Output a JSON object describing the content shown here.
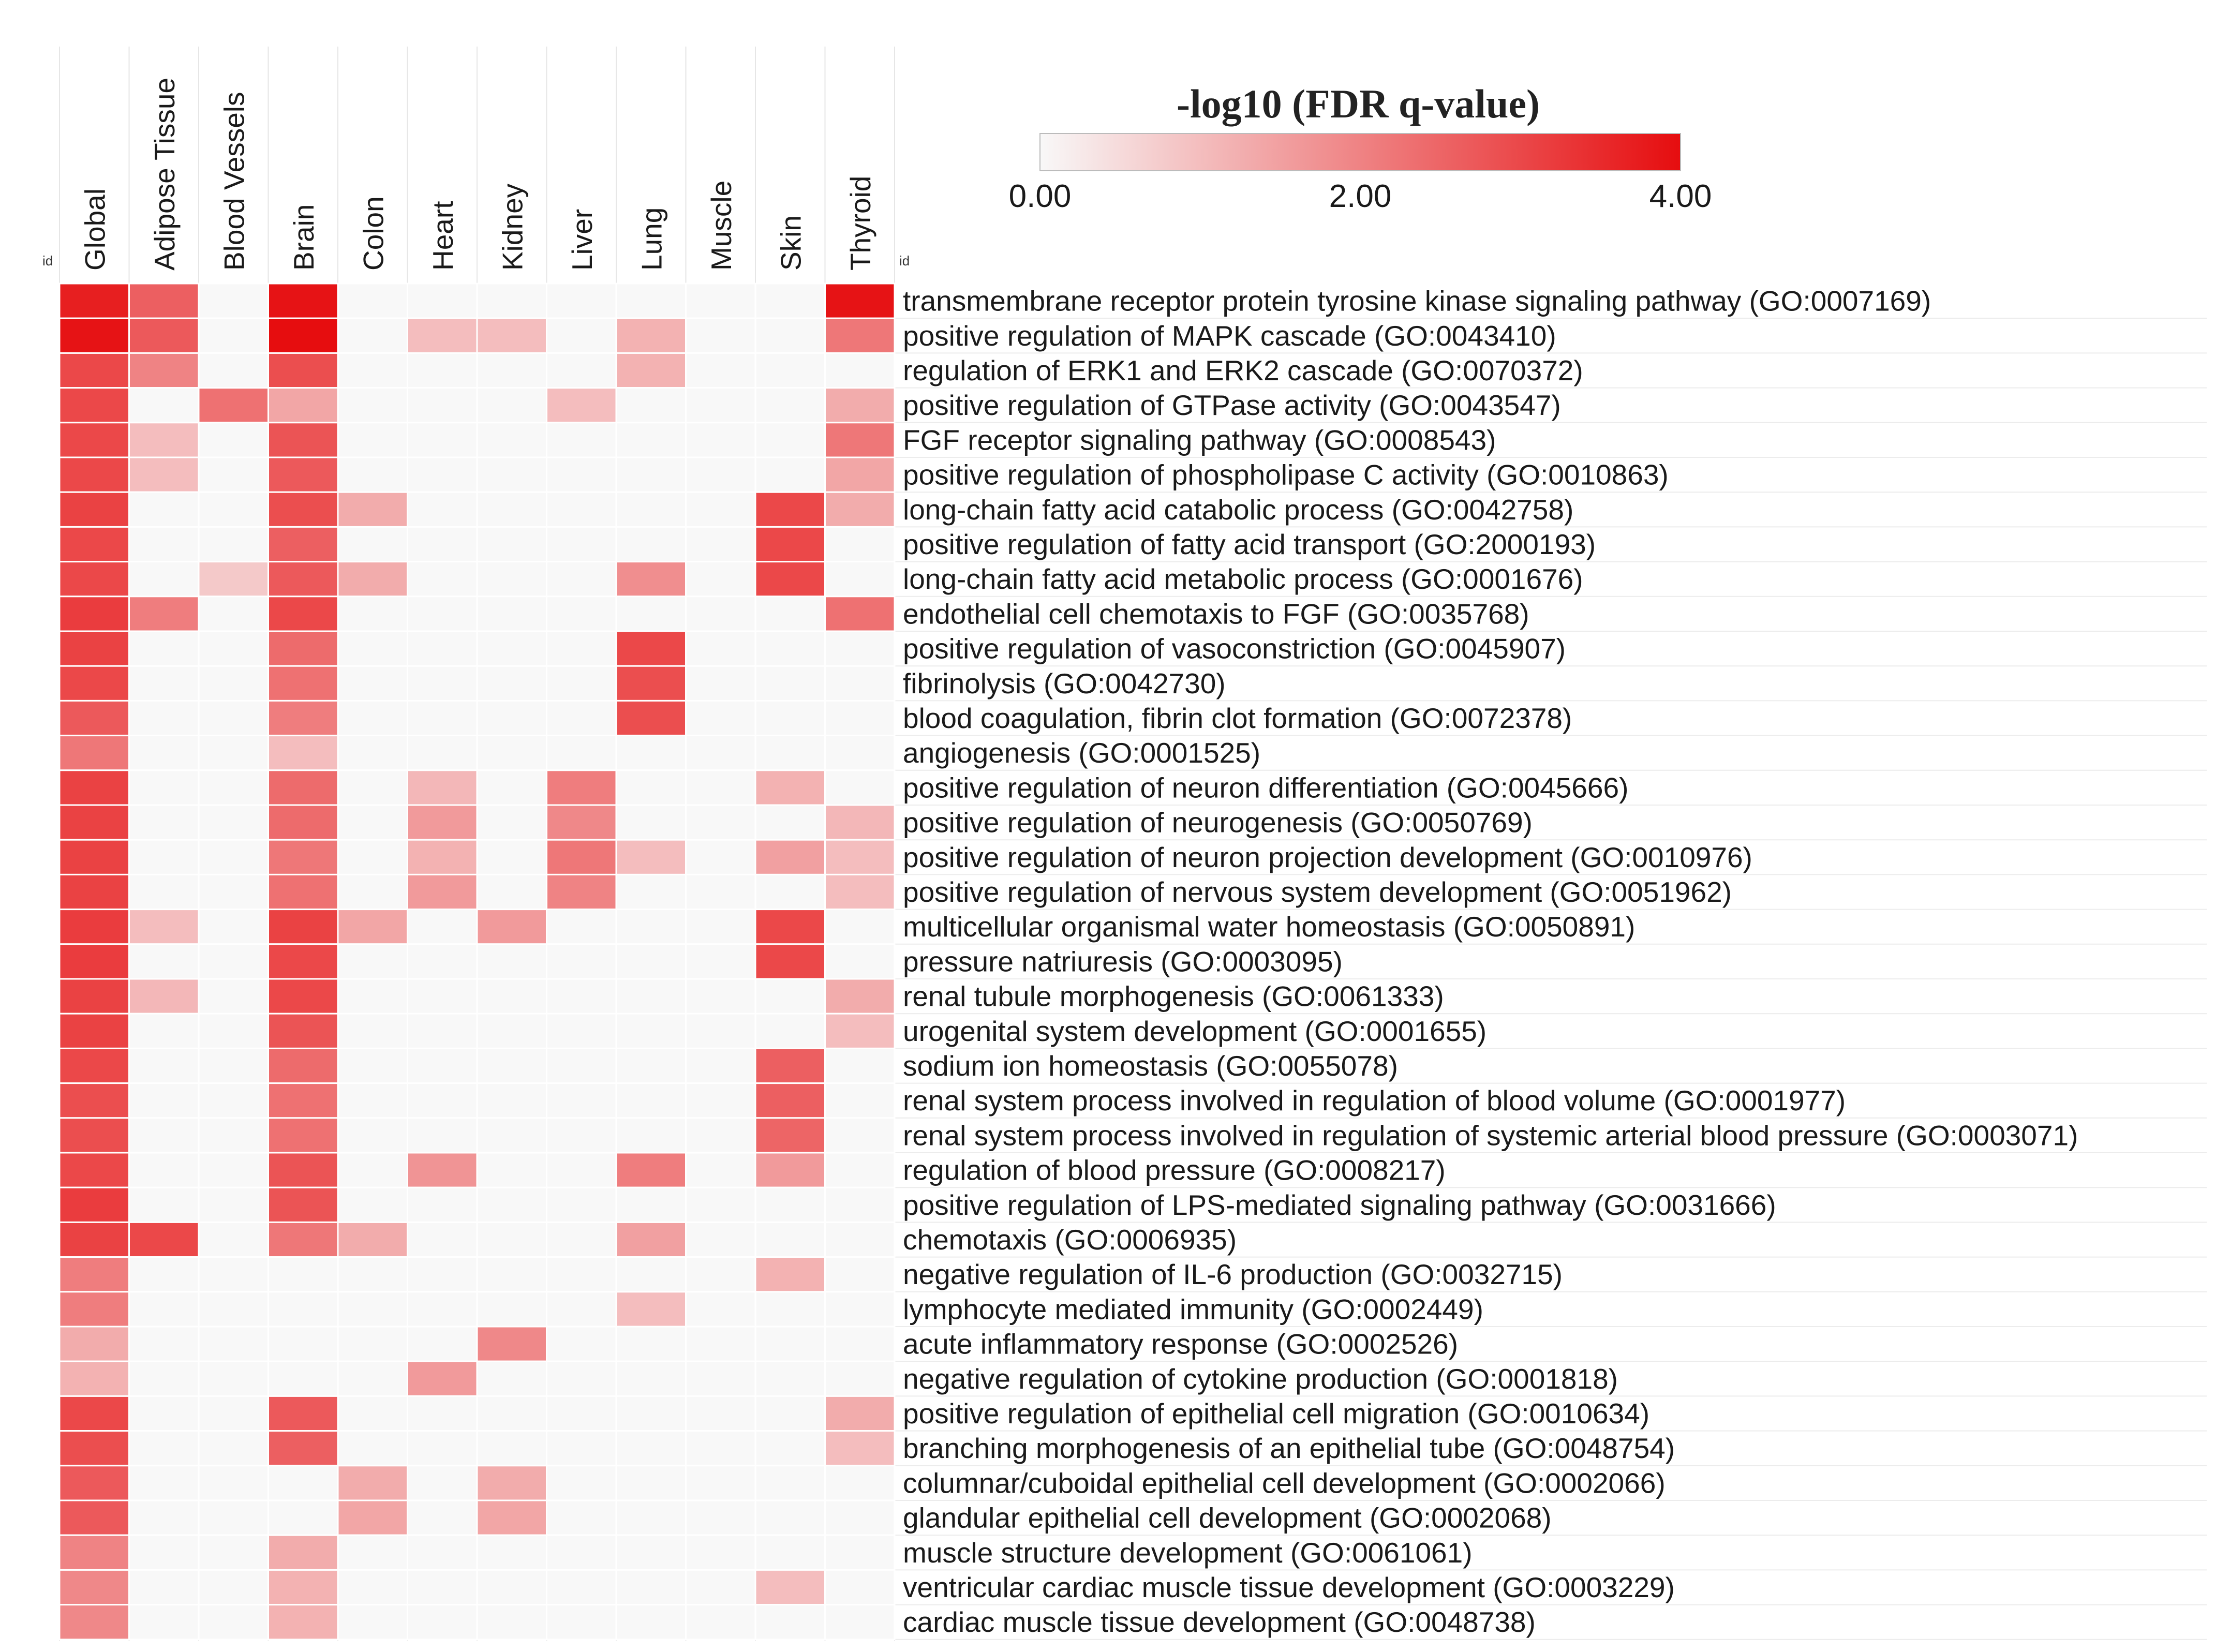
{
  "chart_data": {
    "type": "heatmap",
    "title": "",
    "row_axis_label": "id",
    "col_axis_label": "id",
    "columns": [
      "Global",
      "Adipose Tissue",
      "Blood Vessels",
      "Brain",
      "Colon",
      "Heart",
      "Kidney",
      "Liver",
      "Lung",
      "Muscle",
      "Skin",
      "Thyroid"
    ],
    "rows": [
      "transmembrane receptor protein tyrosine kinase signaling pathway (GO:0007169)",
      "positive regulation of MAPK cascade (GO:0043410)",
      "regulation of ERK1 and ERK2 cascade (GO:0070372)",
      "positive regulation of GTPase activity (GO:0043547)",
      "FGF receptor signaling pathway (GO:0008543)",
      "positive regulation of phospholipase C activity (GO:0010863)",
      "long-chain fatty acid catabolic process (GO:0042758)",
      "positive regulation of fatty acid transport (GO:2000193)",
      "long-chain fatty acid metabolic process (GO:0001676)",
      "endothelial cell chemotaxis to FGF (GO:0035768)",
      "positive regulation of vasoconstriction (GO:0045907)",
      "fibrinolysis (GO:0042730)",
      "blood coagulation, fibrin clot formation (GO:0072378)",
      "angiogenesis (GO:0001525)",
      "positive regulation of neuron differentiation (GO:0045666)",
      "positive regulation of neurogenesis (GO:0050769)",
      "positive regulation of neuron projection development (GO:0010976)",
      "positive regulation of nervous system development (GO:0051962)",
      "multicellular organismal water homeostasis (GO:0050891)",
      "pressure natriuresis (GO:0003095)",
      "renal tubule morphogenesis (GO:0061333)",
      "urogenital system development (GO:0001655)",
      "sodium ion homeostasis (GO:0055078)",
      "renal system process involved in regulation of blood volume (GO:0001977)",
      "renal system process involved in regulation of systemic arterial blood pressure (GO:0003071)",
      "regulation of blood pressure (GO:0008217)",
      "positive regulation of LPS-mediated signaling pathway (GO:0031666)",
      "chemotaxis (GO:0006935)",
      "negative regulation of IL-6 production (GO:0032715)",
      "lymphocyte mediated immunity (GO:0002449)",
      "acute inflammatory response (GO:0002526)",
      "negative regulation of cytokine production (GO:0001818)",
      "positive regulation of epithelial cell migration (GO:0010634)",
      "branching morphogenesis of an epithelial tube (GO:0048754)",
      "columnar/cuboidal epithelial cell development (GO:0002066)",
      "glandular epithelial cell development (GO:0002068)",
      "muscle structure development (GO:0061061)",
      "ventricular cardiac muscle tissue development (GO:0003229)",
      "cardiac muscle tissue development (GO:0048738)"
    ],
    "values": [
      [
        3.7,
        2.6,
        0,
        3.9,
        0,
        0,
        0,
        0,
        0,
        0,
        0,
        3.9
      ],
      [
        3.9,
        2.7,
        0,
        4.0,
        0,
        1.0,
        1.0,
        0,
        1.2,
        0,
        0,
        2.2
      ],
      [
        3.0,
        2.0,
        0,
        2.9,
        0,
        0,
        0,
        0,
        1.2,
        0,
        0,
        0
      ],
      [
        3.0,
        0,
        2.3,
        1.4,
        0,
        0,
        0,
        1.0,
        0,
        0,
        0,
        1.3
      ],
      [
        3.0,
        1.0,
        0,
        2.8,
        0,
        0,
        0,
        0,
        0,
        0,
        0,
        2.2
      ],
      [
        3.0,
        1.0,
        0,
        2.7,
        0,
        0,
        0,
        0,
        0,
        0,
        0,
        1.4
      ],
      [
        3.1,
        0,
        0,
        2.9,
        1.3,
        0,
        0,
        0,
        0,
        0,
        3.0,
        1.3
      ],
      [
        3.0,
        0,
        0,
        2.6,
        0,
        0,
        0,
        0,
        0,
        0,
        3.0,
        0
      ],
      [
        3.0,
        0,
        0.8,
        2.7,
        1.3,
        0,
        0,
        0,
        1.8,
        0,
        3.0,
        0
      ],
      [
        3.2,
        2.1,
        0,
        3.0,
        0,
        0,
        0,
        0,
        0,
        0,
        0,
        2.3
      ],
      [
        3.1,
        0,
        0,
        2.4,
        0,
        0,
        0,
        0,
        3.0,
        0,
        0,
        0
      ],
      [
        3.0,
        0,
        0,
        2.3,
        0,
        0,
        0,
        0,
        2.9,
        0,
        0,
        0
      ],
      [
        2.7,
        0,
        0,
        2.1,
        0,
        0,
        0,
        0,
        2.9,
        0,
        0,
        0
      ],
      [
        2.2,
        0,
        0,
        1.0,
        0,
        0,
        0,
        0,
        0,
        0,
        0,
        0
      ],
      [
        3.1,
        0,
        0,
        2.4,
        0,
        1.1,
        0,
        2.1,
        0,
        0,
        1.2,
        0
      ],
      [
        3.1,
        0,
        0,
        2.4,
        0,
        1.6,
        0,
        1.9,
        0,
        0,
        0,
        1.1
      ],
      [
        3.1,
        0,
        0,
        2.2,
        0,
        1.2,
        0,
        2.2,
        1.0,
        0,
        1.5,
        1.0
      ],
      [
        3.1,
        0,
        0,
        2.3,
        0,
        1.6,
        0,
        2.0,
        0,
        0,
        0,
        1.0
      ],
      [
        3.2,
        1.0,
        0,
        3.1,
        1.4,
        0,
        1.6,
        0,
        0,
        0,
        3.0,
        0
      ],
      [
        3.2,
        0,
        0,
        3.0,
        0,
        0,
        0,
        0,
        0,
        0,
        3.0,
        0
      ],
      [
        3.1,
        1.1,
        0,
        3.0,
        0,
        0,
        0,
        0,
        0,
        0,
        0,
        1.3
      ],
      [
        3.1,
        0,
        0,
        2.8,
        0,
        0,
        0,
        0,
        0,
        0,
        0,
        1.0
      ],
      [
        3.0,
        0,
        0,
        2.4,
        0,
        0,
        0,
        0,
        0,
        0,
        2.6,
        0
      ],
      [
        2.9,
        0,
        0,
        2.3,
        0,
        0,
        0,
        0,
        0,
        0,
        2.6,
        0
      ],
      [
        2.9,
        0,
        0,
        2.3,
        0,
        0,
        0,
        0,
        0,
        0,
        2.5,
        0
      ],
      [
        3.0,
        0,
        0,
        2.8,
        0,
        1.7,
        0,
        0,
        2.1,
        0,
        1.6,
        0
      ],
      [
        3.2,
        0,
        0,
        2.8,
        0,
        0,
        0,
        0,
        0,
        0,
        0,
        0
      ],
      [
        3.1,
        3.0,
        0,
        2.2,
        1.3,
        0,
        0,
        0,
        1.5,
        0,
        0,
        0
      ],
      [
        2.1,
        0,
        0,
        0,
        0,
        0,
        0,
        0,
        0,
        0,
        1.2,
        0
      ],
      [
        2.1,
        0,
        0,
        0,
        0,
        0,
        0,
        0,
        1.0,
        0,
        0,
        0
      ],
      [
        1.3,
        0,
        0,
        0,
        0,
        0,
        1.9,
        0,
        0,
        0,
        0,
        0
      ],
      [
        1.2,
        0,
        0,
        0,
        0,
        1.6,
        0,
        0,
        0,
        0,
        0,
        0
      ],
      [
        3.0,
        0,
        0,
        2.7,
        0,
        0,
        0,
        0,
        0,
        0,
        0,
        1.3
      ],
      [
        2.9,
        0,
        0,
        2.6,
        0,
        0,
        0,
        0,
        0,
        0,
        0,
        1.0
      ],
      [
        2.7,
        0,
        0,
        0,
        1.3,
        0,
        1.3,
        0,
        0,
        0,
        0,
        0
      ],
      [
        2.7,
        0,
        0,
        0,
        1.4,
        0,
        1.4,
        0,
        0,
        0,
        0,
        0
      ],
      [
        2.0,
        0,
        0,
        1.3,
        0,
        0,
        0,
        0,
        0,
        0,
        0,
        0
      ],
      [
        1.9,
        0,
        0,
        1.2,
        0,
        0,
        0,
        0,
        0,
        0,
        1.0,
        0
      ],
      [
        1.9,
        0,
        0,
        1.2,
        0,
        0,
        0,
        0,
        0,
        0,
        0,
        0
      ]
    ],
    "legend": {
      "title": "-log10 (FDR q-value)",
      "min": 0,
      "max": 4,
      "ticks": [
        "0.00",
        "2.00",
        "4.00"
      ],
      "low_color": "#f8f8f8",
      "high_color": "#e60d0f"
    },
    "empty_cell_color": "#f8f8f8",
    "grid_line_color": "#ffffff"
  }
}
